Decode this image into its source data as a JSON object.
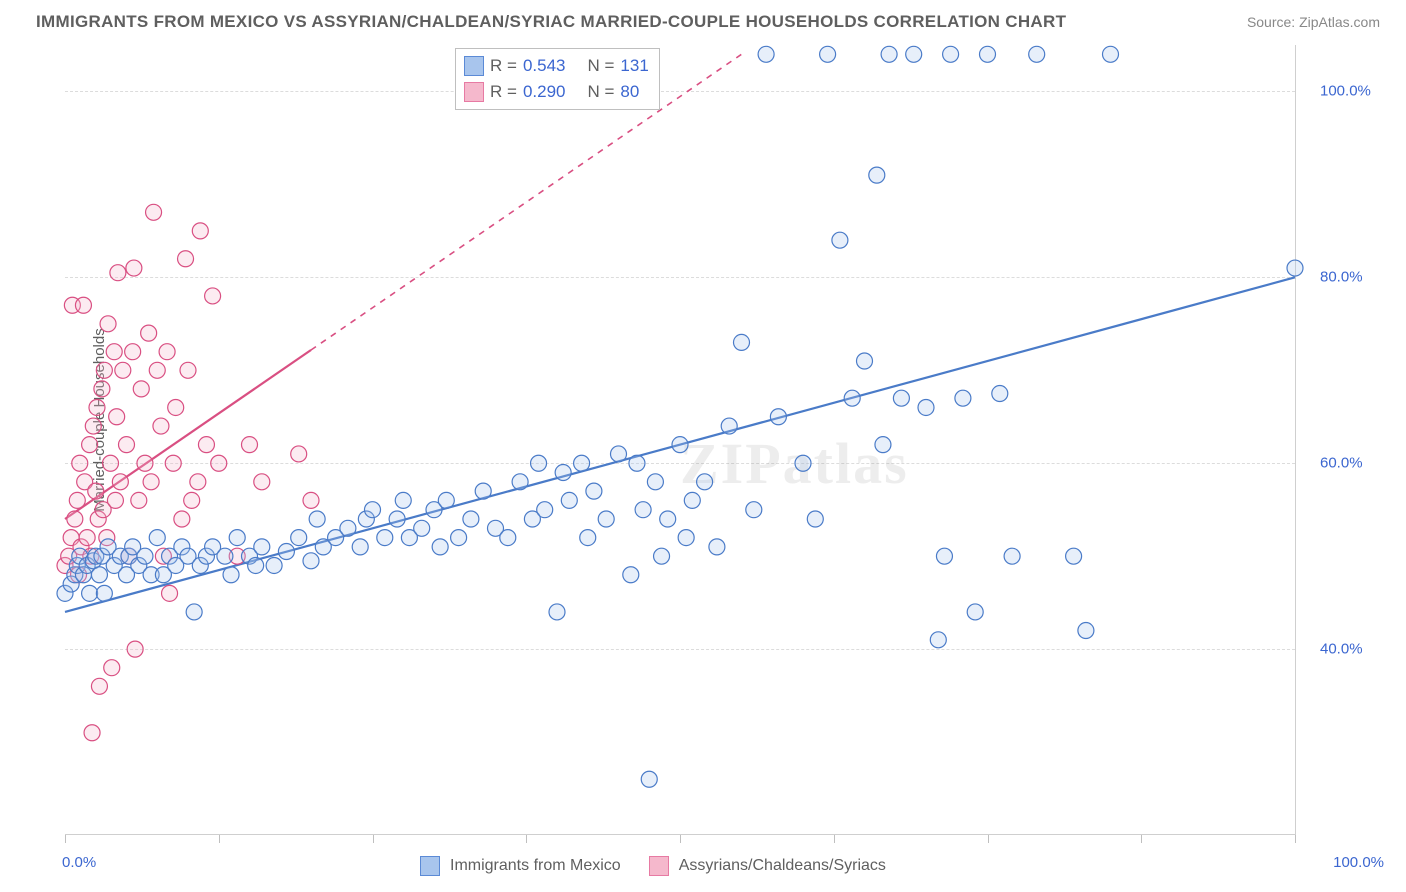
{
  "title": "IMMIGRANTS FROM MEXICO VS ASSYRIAN/CHALDEAN/SYRIAC MARRIED-COUPLE HOUSEHOLDS CORRELATION CHART",
  "source": "Source: ZipAtlas.com",
  "ylabel": "Married-couple Households",
  "watermark": "ZIPatlas",
  "chart": {
    "type": "scatter",
    "background_color": "#ffffff",
    "grid_color": "#dcdcdc",
    "grid_dash": "4,4",
    "axis_color": "#cfcfcf",
    "xlim": [
      0,
      100
    ],
    "ylim": [
      20,
      105
    ],
    "ytick_labels": [
      "40.0%",
      "60.0%",
      "80.0%",
      "100.0%"
    ],
    "ytick_values": [
      40,
      60,
      80,
      100
    ],
    "ytick_color": "#3b66d0",
    "ytick_fontsize": 15,
    "x_zero_label": "0.0%",
    "x_hundred_label": "100.0%",
    "xtick_positions": [
      0,
      12.5,
      25,
      37.5,
      50,
      62.5,
      75,
      87.5,
      100
    ],
    "label_fontsize": 15,
    "label_color": "#5f5f5f",
    "title_fontsize": 17,
    "title_color": "#5f5f5f",
    "marker_radius": 8,
    "marker_stroke_width": 1.2,
    "marker_fill_opacity": 0.28,
    "trendline_width": 2.2,
    "trendline_dash_width": 1.6
  },
  "legend_top": {
    "rows": [
      {
        "swatch_fill": "#a8c5ed",
        "swatch_stroke": "#5b8ad6",
        "r_label": "R =",
        "r_value": "0.543",
        "n_label": "N =",
        "n_value": "131"
      },
      {
        "swatch_fill": "#f5b8cc",
        "swatch_stroke": "#e77aa3",
        "r_label": "R =",
        "r_value": "0.290",
        "n_label": "N =",
        "n_value": "80"
      }
    ]
  },
  "legend_bottom": {
    "items": [
      {
        "swatch_fill": "#a8c5ed",
        "swatch_stroke": "#5b8ad6",
        "label": "Immigrants from Mexico"
      },
      {
        "swatch_fill": "#f5b8cc",
        "swatch_stroke": "#e77aa3",
        "label": "Assyrians/Chaldeans/Syriacs"
      }
    ]
  },
  "series": [
    {
      "name": "mexico",
      "color_stroke": "#4a7bc8",
      "color_fill": "#a8c5ed",
      "trendline": {
        "x1": 0,
        "y1": 44,
        "x2": 100,
        "y2": 80,
        "solid_until_x": 100
      },
      "points": [
        [
          0,
          46
        ],
        [
          0.5,
          47
        ],
        [
          0.8,
          48
        ],
        [
          1,
          49
        ],
        [
          1.2,
          50
        ],
        [
          1.5,
          48
        ],
        [
          1.8,
          49
        ],
        [
          2,
          46
        ],
        [
          2.3,
          49.5
        ],
        [
          2.5,
          50
        ],
        [
          2.8,
          48
        ],
        [
          3,
          50
        ],
        [
          3.2,
          46
        ],
        [
          3.5,
          51
        ],
        [
          4,
          49
        ],
        [
          4.5,
          50
        ],
        [
          5,
          48
        ],
        [
          5.2,
          50
        ],
        [
          5.5,
          51
        ],
        [
          6,
          49
        ],
        [
          6.5,
          50
        ],
        [
          7,
          48
        ],
        [
          7.5,
          52
        ],
        [
          8,
          48
        ],
        [
          8.5,
          50
        ],
        [
          9,
          49
        ],
        [
          9.5,
          51
        ],
        [
          10,
          50
        ],
        [
          10.5,
          44
        ],
        [
          11,
          49
        ],
        [
          11.5,
          50
        ],
        [
          12,
          51
        ],
        [
          13,
          50
        ],
        [
          13.5,
          48
        ],
        [
          14,
          52
        ],
        [
          15,
          50
        ],
        [
          15.5,
          49
        ],
        [
          16,
          51
        ],
        [
          17,
          49
        ],
        [
          18,
          50.5
        ],
        [
          19,
          52
        ],
        [
          20,
          49.5
        ],
        [
          20.5,
          54
        ],
        [
          21,
          51
        ],
        [
          22,
          52
        ],
        [
          23,
          53
        ],
        [
          24,
          51
        ],
        [
          24.5,
          54
        ],
        [
          25,
          55
        ],
        [
          26,
          52
        ],
        [
          27,
          54
        ],
        [
          27.5,
          56
        ],
        [
          28,
          52
        ],
        [
          29,
          53
        ],
        [
          30,
          55
        ],
        [
          30.5,
          51
        ],
        [
          31,
          56
        ],
        [
          32,
          52
        ],
        [
          33,
          54
        ],
        [
          34,
          57
        ],
        [
          35,
          53
        ],
        [
          36,
          52
        ],
        [
          37,
          58
        ],
        [
          38,
          54
        ],
        [
          38.5,
          60
        ],
        [
          39,
          55
        ],
        [
          40,
          44
        ],
        [
          40.5,
          59
        ],
        [
          41,
          56
        ],
        [
          42,
          60
        ],
        [
          42.5,
          52
        ],
        [
          43,
          57
        ],
        [
          44,
          54
        ],
        [
          45,
          61
        ],
        [
          46,
          48
        ],
        [
          46.5,
          60
        ],
        [
          47,
          55
        ],
        [
          47.5,
          26
        ],
        [
          48,
          58
        ],
        [
          48.5,
          50
        ],
        [
          49,
          54
        ],
        [
          50,
          62
        ],
        [
          50.5,
          52
        ],
        [
          51,
          56
        ],
        [
          52,
          58
        ],
        [
          53,
          51
        ],
        [
          54,
          64
        ],
        [
          55,
          73
        ],
        [
          56,
          55
        ],
        [
          57,
          104
        ],
        [
          58,
          65
        ],
        [
          60,
          60
        ],
        [
          61,
          54
        ],
        [
          62,
          104
        ],
        [
          63,
          84
        ],
        [
          64,
          67
        ],
        [
          65,
          71
        ],
        [
          66,
          91
        ],
        [
          66.5,
          62
        ],
        [
          67,
          104
        ],
        [
          68,
          67
        ],
        [
          69,
          104
        ],
        [
          70,
          66
        ],
        [
          71,
          41
        ],
        [
          71.5,
          50
        ],
        [
          72,
          104
        ],
        [
          73,
          67
        ],
        [
          74,
          44
        ],
        [
          75,
          104
        ],
        [
          76,
          67.5
        ],
        [
          77,
          50
        ],
        [
          79,
          104
        ],
        [
          82,
          50
        ],
        [
          83,
          42
        ],
        [
          85,
          104
        ],
        [
          100,
          81
        ]
      ]
    },
    {
      "name": "assyrian",
      "color_stroke": "#d94f82",
      "color_fill": "#f5b8cc",
      "trendline": {
        "x1": 0,
        "y1": 54,
        "x2": 55,
        "y2": 104,
        "solid_until_x": 20
      },
      "points": [
        [
          0,
          49
        ],
        [
          0.3,
          50
        ],
        [
          0.5,
          52
        ],
        [
          0.6,
          77
        ],
        [
          0.8,
          54
        ],
        [
          1,
          56
        ],
        [
          1.1,
          48
        ],
        [
          1.2,
          60
        ],
        [
          1.3,
          51
        ],
        [
          1.5,
          77
        ],
        [
          1.6,
          58
        ],
        [
          1.8,
          52
        ],
        [
          2,
          62
        ],
        [
          2.1,
          50
        ],
        [
          2.2,
          31
        ],
        [
          2.3,
          64
        ],
        [
          2.5,
          57
        ],
        [
          2.6,
          66
        ],
        [
          2.7,
          54
        ],
        [
          2.8,
          36
        ],
        [
          3,
          68
        ],
        [
          3.1,
          55
        ],
        [
          3.2,
          70
        ],
        [
          3.4,
          52
        ],
        [
          3.5,
          75
        ],
        [
          3.7,
          60
        ],
        [
          3.8,
          38
        ],
        [
          4,
          72
        ],
        [
          4.1,
          56
        ],
        [
          4.2,
          65
        ],
        [
          4.3,
          80.5
        ],
        [
          4.5,
          58
        ],
        [
          4.7,
          70
        ],
        [
          5,
          62
        ],
        [
          5.2,
          50
        ],
        [
          5.5,
          72
        ],
        [
          5.6,
          81
        ],
        [
          5.7,
          40
        ],
        [
          6,
          56
        ],
        [
          6.2,
          68
        ],
        [
          6.5,
          60
        ],
        [
          6.8,
          74
        ],
        [
          7,
          58
        ],
        [
          7.2,
          87
        ],
        [
          7.5,
          70
        ],
        [
          7.8,
          64
        ],
        [
          8,
          50
        ],
        [
          8.3,
          72
        ],
        [
          8.5,
          46
        ],
        [
          8.8,
          60
        ],
        [
          9,
          66
        ],
        [
          9.5,
          54
        ],
        [
          9.8,
          82
        ],
        [
          10,
          70
        ],
        [
          10.3,
          56
        ],
        [
          10.8,
          58
        ],
        [
          11,
          85
        ],
        [
          11.5,
          62
        ],
        [
          12,
          78
        ],
        [
          12.5,
          60
        ],
        [
          14,
          50
        ],
        [
          15,
          62
        ],
        [
          16,
          58
        ],
        [
          19,
          61
        ],
        [
          20,
          56
        ]
      ]
    }
  ]
}
